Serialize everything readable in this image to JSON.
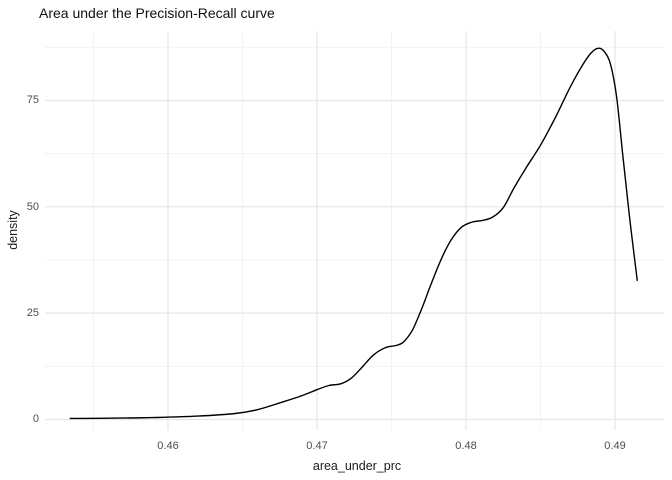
{
  "colors": {
    "background": "#ffffff",
    "curve": "#000000",
    "grid_major": "#e6e6e6",
    "grid_minor": "#f0f0f0",
    "tick_text": "#4d4d4d",
    "title_text": "#111111",
    "axis_title_text": "#1a1a1a"
  },
  "chart_data": {
    "type": "line",
    "subtype": "density-curve",
    "title": "Area under the Precision-Recall curve",
    "xlabel": "area_under_prc",
    "ylabel": "density",
    "legend": "none",
    "grid": "on",
    "xlim": [
      0.451745,
      0.493289
    ],
    "ylim": [
      -2.47,
      91.34
    ],
    "x_tick_values": [
      0.46,
      0.47,
      0.48,
      0.49
    ],
    "x_tick_labels": [
      "0.46",
      "0.47",
      "0.48",
      "0.49"
    ],
    "x_minor_tick_values": [
      0.455,
      0.465,
      0.475,
      0.485
    ],
    "y_tick_values": [
      0,
      25,
      50,
      75
    ],
    "y_tick_labels": [
      "0",
      "25",
      "50",
      "75"
    ],
    "y_minor_tick_values": [
      12.5,
      37.5,
      62.5,
      87.5
    ],
    "series": [
      {
        "name": "density of area_under_prc",
        "points": [
          [
            0.4534,
            0.25
          ],
          [
            0.456,
            0.3
          ],
          [
            0.459,
            0.45
          ],
          [
            0.462,
            0.8
          ],
          [
            0.4645,
            1.4
          ],
          [
            0.466,
            2.3
          ],
          [
            0.4675,
            3.9
          ],
          [
            0.4689,
            5.5
          ],
          [
            0.47,
            7.0
          ],
          [
            0.4708,
            8.0
          ],
          [
            0.4716,
            8.4
          ],
          [
            0.4723,
            9.7
          ],
          [
            0.473,
            12.2
          ],
          [
            0.4738,
            15.2
          ],
          [
            0.4746,
            16.9
          ],
          [
            0.4753,
            17.4
          ],
          [
            0.4758,
            18.2
          ],
          [
            0.4764,
            21.0
          ],
          [
            0.477,
            25.8
          ],
          [
            0.4776,
            31.3
          ],
          [
            0.4783,
            37.4
          ],
          [
            0.479,
            42.2
          ],
          [
            0.4797,
            45.2
          ],
          [
            0.4804,
            46.4
          ],
          [
            0.4811,
            46.8
          ],
          [
            0.4818,
            47.6
          ],
          [
            0.4825,
            49.8
          ],
          [
            0.4832,
            54.3
          ],
          [
            0.484,
            59.0
          ],
          [
            0.485,
            64.5
          ],
          [
            0.486,
            71.0
          ],
          [
            0.487,
            78.2
          ],
          [
            0.4878,
            83.2
          ],
          [
            0.4884,
            86.2
          ],
          [
            0.4889,
            87.3
          ],
          [
            0.4893,
            86.4
          ],
          [
            0.4897,
            83.5
          ],
          [
            0.4901,
            76.0
          ],
          [
            0.4905,
            63.0
          ],
          [
            0.4909,
            50.0
          ],
          [
            0.4912,
            41.0
          ],
          [
            0.4915,
            32.6
          ]
        ]
      }
    ]
  }
}
